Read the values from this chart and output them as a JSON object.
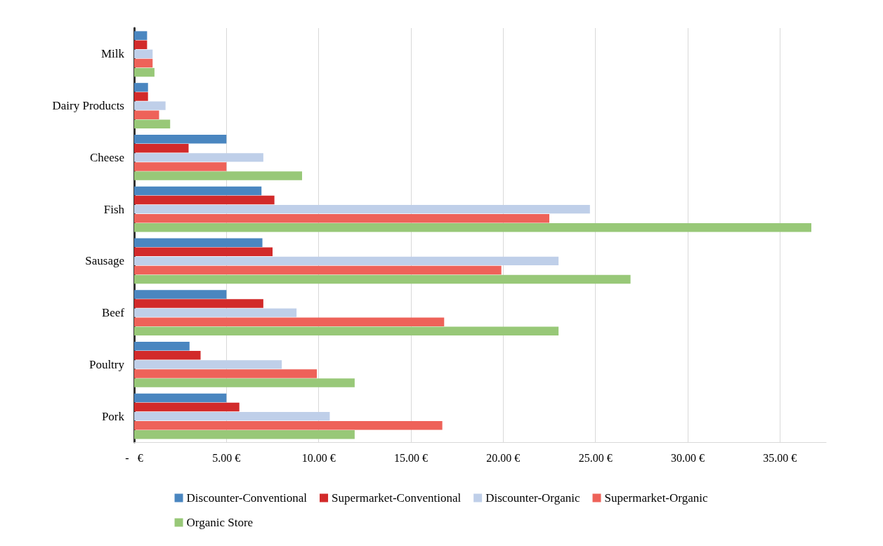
{
  "chart_data": {
    "type": "bar",
    "orientation": "horizontal",
    "categories": [
      "Milk",
      "Dairy Products",
      "Cheese",
      "Fish",
      "Sausage",
      "Beef",
      "Poultry",
      "Pork"
    ],
    "series": [
      {
        "name": "Discounter-Conventional",
        "color": "#4a86c0",
        "values": [
          0.7,
          0.75,
          5.0,
          6.9,
          6.95,
          5.0,
          3.0,
          5.0
        ]
      },
      {
        "name": "Supermarket-Conventional",
        "color": "#d22a2a",
        "values": [
          0.7,
          0.75,
          2.95,
          7.6,
          7.5,
          7.0,
          3.6,
          5.7
        ]
      },
      {
        "name": "Discounter-Organic",
        "color": "#bfcfe9",
        "values": [
          1.0,
          1.7,
          7.0,
          24.7,
          23.0,
          8.8,
          8.0,
          10.6
        ]
      },
      {
        "name": "Supermarket-Organic",
        "color": "#ee6259",
        "values": [
          1.0,
          1.35,
          5.0,
          22.5,
          19.9,
          16.8,
          9.9,
          16.7
        ]
      },
      {
        "name": "Organic Store",
        "color": "#98c878",
        "values": [
          1.1,
          1.95,
          9.1,
          36.7,
          26.9,
          23.0,
          11.95,
          11.95
        ]
      }
    ],
    "xlim": [
      0,
      37.5
    ],
    "xticks": [
      {
        "value": 0,
        "label": "-   €"
      },
      {
        "value": 5,
        "label": "5.00 €"
      },
      {
        "value": 10,
        "label": "10.00 €"
      },
      {
        "value": 15,
        "label": "15.00 €"
      },
      {
        "value": 20,
        "label": "20.00 €"
      },
      {
        "value": 25,
        "label": "25.00 €"
      },
      {
        "value": 30,
        "label": "30.00 €"
      },
      {
        "value": 35,
        "label": "35.00 €"
      }
    ],
    "grid": "x",
    "legend": "bottom"
  }
}
